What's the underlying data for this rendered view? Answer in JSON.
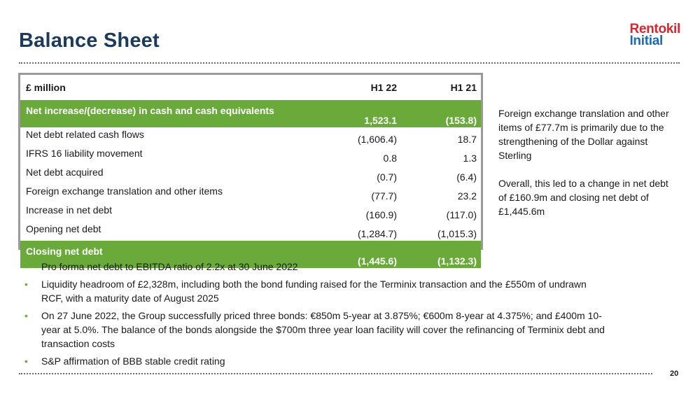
{
  "slide": {
    "title": "Balance Sheet",
    "page_number": "20",
    "logo": {
      "line1": "Rentokil",
      "line2": "Initial"
    }
  },
  "table": {
    "headers": [
      "£ million",
      "H1 22",
      "H1 21"
    ],
    "rows": [
      {
        "label": "Net increase/(decrease) in cash and cash equivalents",
        "h1_22": "1,523.1",
        "h1_21": "(153.8)"
      },
      {
        "label": "Net debt related cash flows",
        "h1_22": "(1,606.4)",
        "h1_21": "18.7"
      },
      {
        "label": "IFRS 16 liability movement",
        "h1_22": "0.8",
        "h1_21": "1.3"
      },
      {
        "label": "Net debt acquired",
        "h1_22": "(0.7)",
        "h1_21": "(6.4)"
      },
      {
        "label": "Foreign exchange translation and other items",
        "h1_22": "(77.7)",
        "h1_21": "23.2"
      },
      {
        "label": "Increase in net debt",
        "h1_22": "(160.9)",
        "h1_21": "(117.0)"
      },
      {
        "label": "Opening net debt",
        "h1_22": "(1,284.7)",
        "h1_21": "(1,015.3)"
      },
      {
        "label": "Closing net debt",
        "h1_22": "(1,445.6)",
        "h1_21": "(1,132.3)"
      }
    ]
  },
  "side_notes": [
    "Foreign exchange translation and other items of £77.7m is primarily due to the strengthening of the Dollar against Sterling",
    "Overall, this led to a change in net debt of £160.9m and closing net debt of £1,445.6m"
  ],
  "bullets": [
    "Pro forma net debt to EBITDA ratio of 2.2x at 30 June 2022",
    "Liquidity headroom of £2,328m, including both the bond funding raised for the Terminix transaction and the £550m of undrawn RCF, with a maturity date of August 2025",
    "On 27 June 2022, the Group successfully priced three bonds: €850m 5-year at 3.875%; €600m 8-year at 4.375%; and £400m 10-year at 5.0%. The balance of the bonds alongside the $700m three year loan facility will cover the refinancing of Terminix debt and transaction costs",
    "S&P affirmation of BBB stable credit rating"
  ],
  "bullet_glyph": "•",
  "colors": {
    "accent_green": "#6aaa3a",
    "title_navy": "#1b3a5c",
    "logo_red": "#d7262f",
    "logo_blue": "#1f6bb3"
  }
}
